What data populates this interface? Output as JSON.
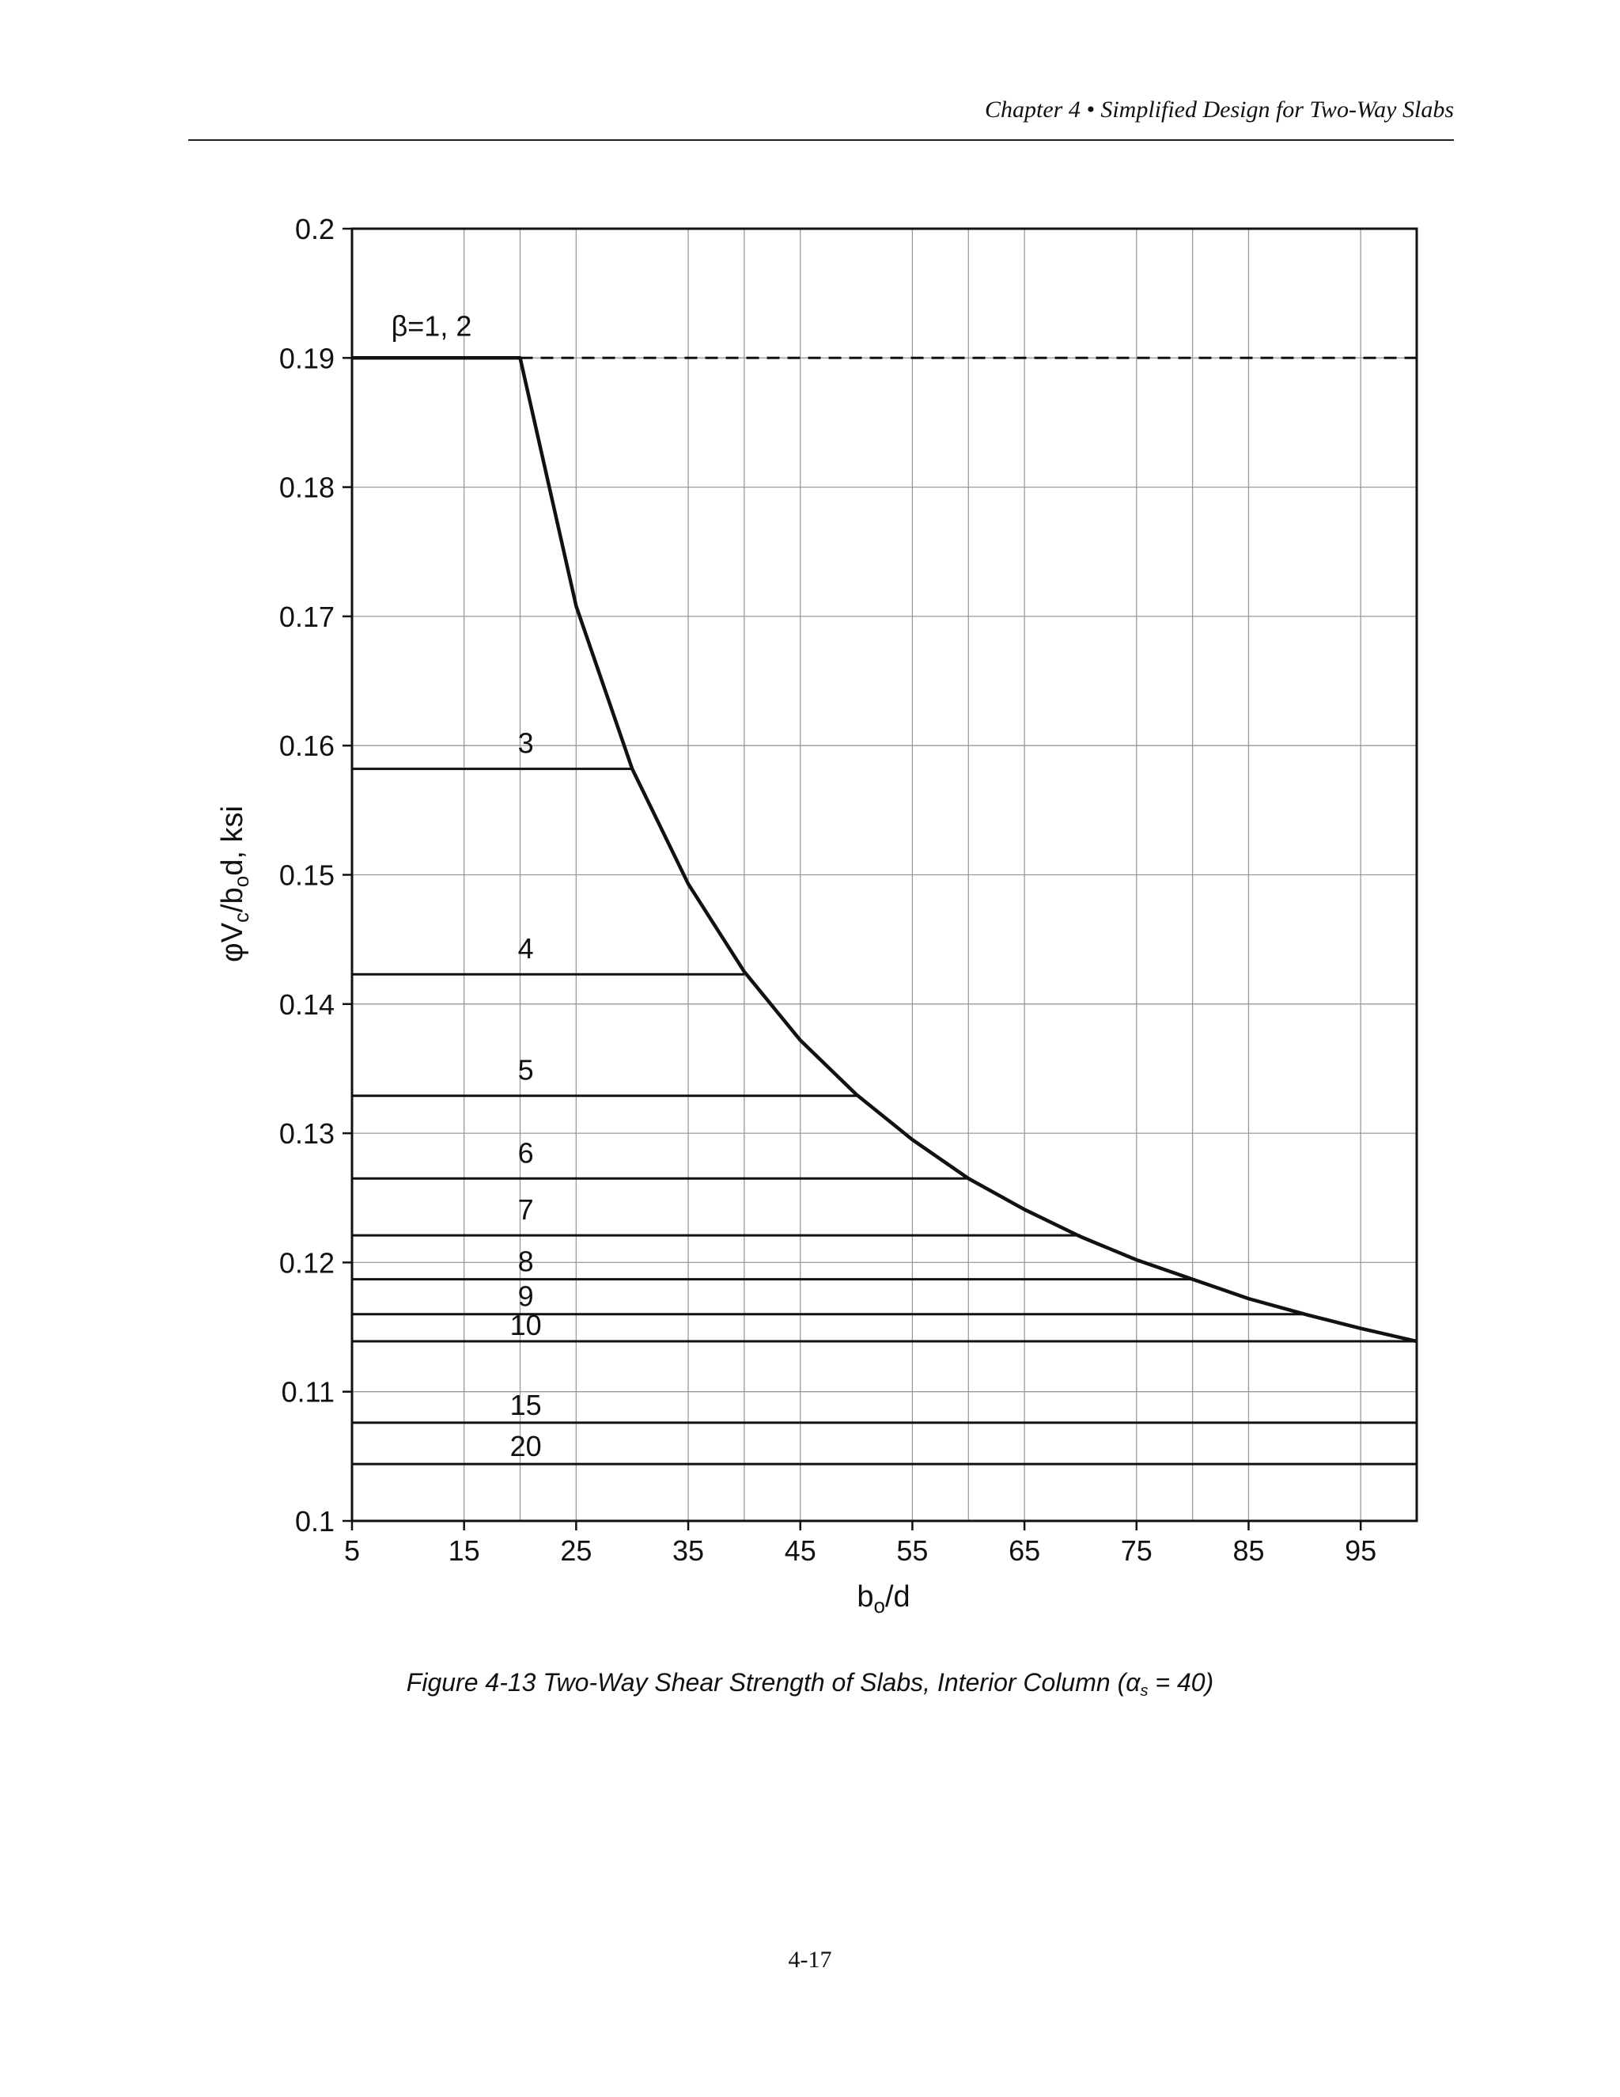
{
  "header": {
    "running_head": "Chapter 4 • Simplified Design for Two-Way Slabs"
  },
  "chart_data": {
    "type": "line",
    "title": "",
    "xlabel": {
      "main": "b",
      "sub": "o",
      "rest": "/d"
    },
    "ylabel": {
      "phi": "φ",
      "v": "V",
      "v_sub": "c",
      "mid": "/b",
      "b_sub": "o",
      "rest": "d, ksi"
    },
    "xlim": [
      5,
      100
    ],
    "ylim": [
      0.1,
      0.2
    ],
    "x_ticks": [
      5,
      15,
      25,
      35,
      45,
      55,
      65,
      75,
      85,
      95
    ],
    "x_gridlines": [
      5,
      15,
      20,
      25,
      35,
      40,
      45,
      55,
      60,
      65,
      75,
      80,
      85,
      95,
      100
    ],
    "y_ticks": [
      0.1,
      0.11,
      0.12,
      0.13,
      0.14,
      0.15,
      0.16,
      0.17,
      0.18,
      0.19,
      0.2
    ],
    "y_tick_labels": [
      "0.1",
      "0.11",
      "0.12",
      "0.13",
      "0.14",
      "0.15",
      "0.16",
      "0.17",
      "0.18",
      "0.19",
      "0.2"
    ],
    "grid": true,
    "envelope": {
      "x": [
        5,
        20,
        25,
        30,
        35,
        40,
        45,
        50,
        55,
        60,
        65,
        70,
        75,
        80,
        85,
        90,
        95,
        100
      ],
      "y": [
        0.19,
        0.19,
        0.1708,
        0.1582,
        0.1493,
        0.1425,
        0.1372,
        0.133,
        0.1295,
        0.1265,
        0.1241,
        0.122,
        0.1202,
        0.1187,
        0.1172,
        0.116,
        0.1149,
        0.1139
      ]
    },
    "dashed_line": {
      "x": [
        20,
        100
      ],
      "y": 0.19
    },
    "beta_lines": [
      {
        "label": "3",
        "y": 0.1582,
        "x_end": 30
      },
      {
        "label": "4",
        "y": 0.1423,
        "x_end": 40
      },
      {
        "label": "5",
        "y": 0.1329,
        "x_end": 50
      },
      {
        "label": "6",
        "y": 0.1265,
        "x_end": 60
      },
      {
        "label": "7",
        "y": 0.1221,
        "x_end": 70
      },
      {
        "label": "8",
        "y": 0.1187,
        "x_end": 80
      },
      {
        "label": "9",
        "y": 0.116,
        "x_end": 90
      },
      {
        "label": "10",
        "y": 0.1139,
        "x_end": 100
      },
      {
        "label": "15",
        "y": 0.1076,
        "x_end": 100
      },
      {
        "label": "20",
        "y": 0.1044,
        "x_end": 100
      }
    ],
    "top_label": "β=1, 2"
  },
  "caption": {
    "prefix": "Figure 4-13 Two-Way Shear Strength of Slabs, Interior Column (",
    "alpha": "α",
    "alpha_sub": "s",
    "suffix": " = 40)"
  },
  "footer": {
    "page_number": "4-17"
  }
}
